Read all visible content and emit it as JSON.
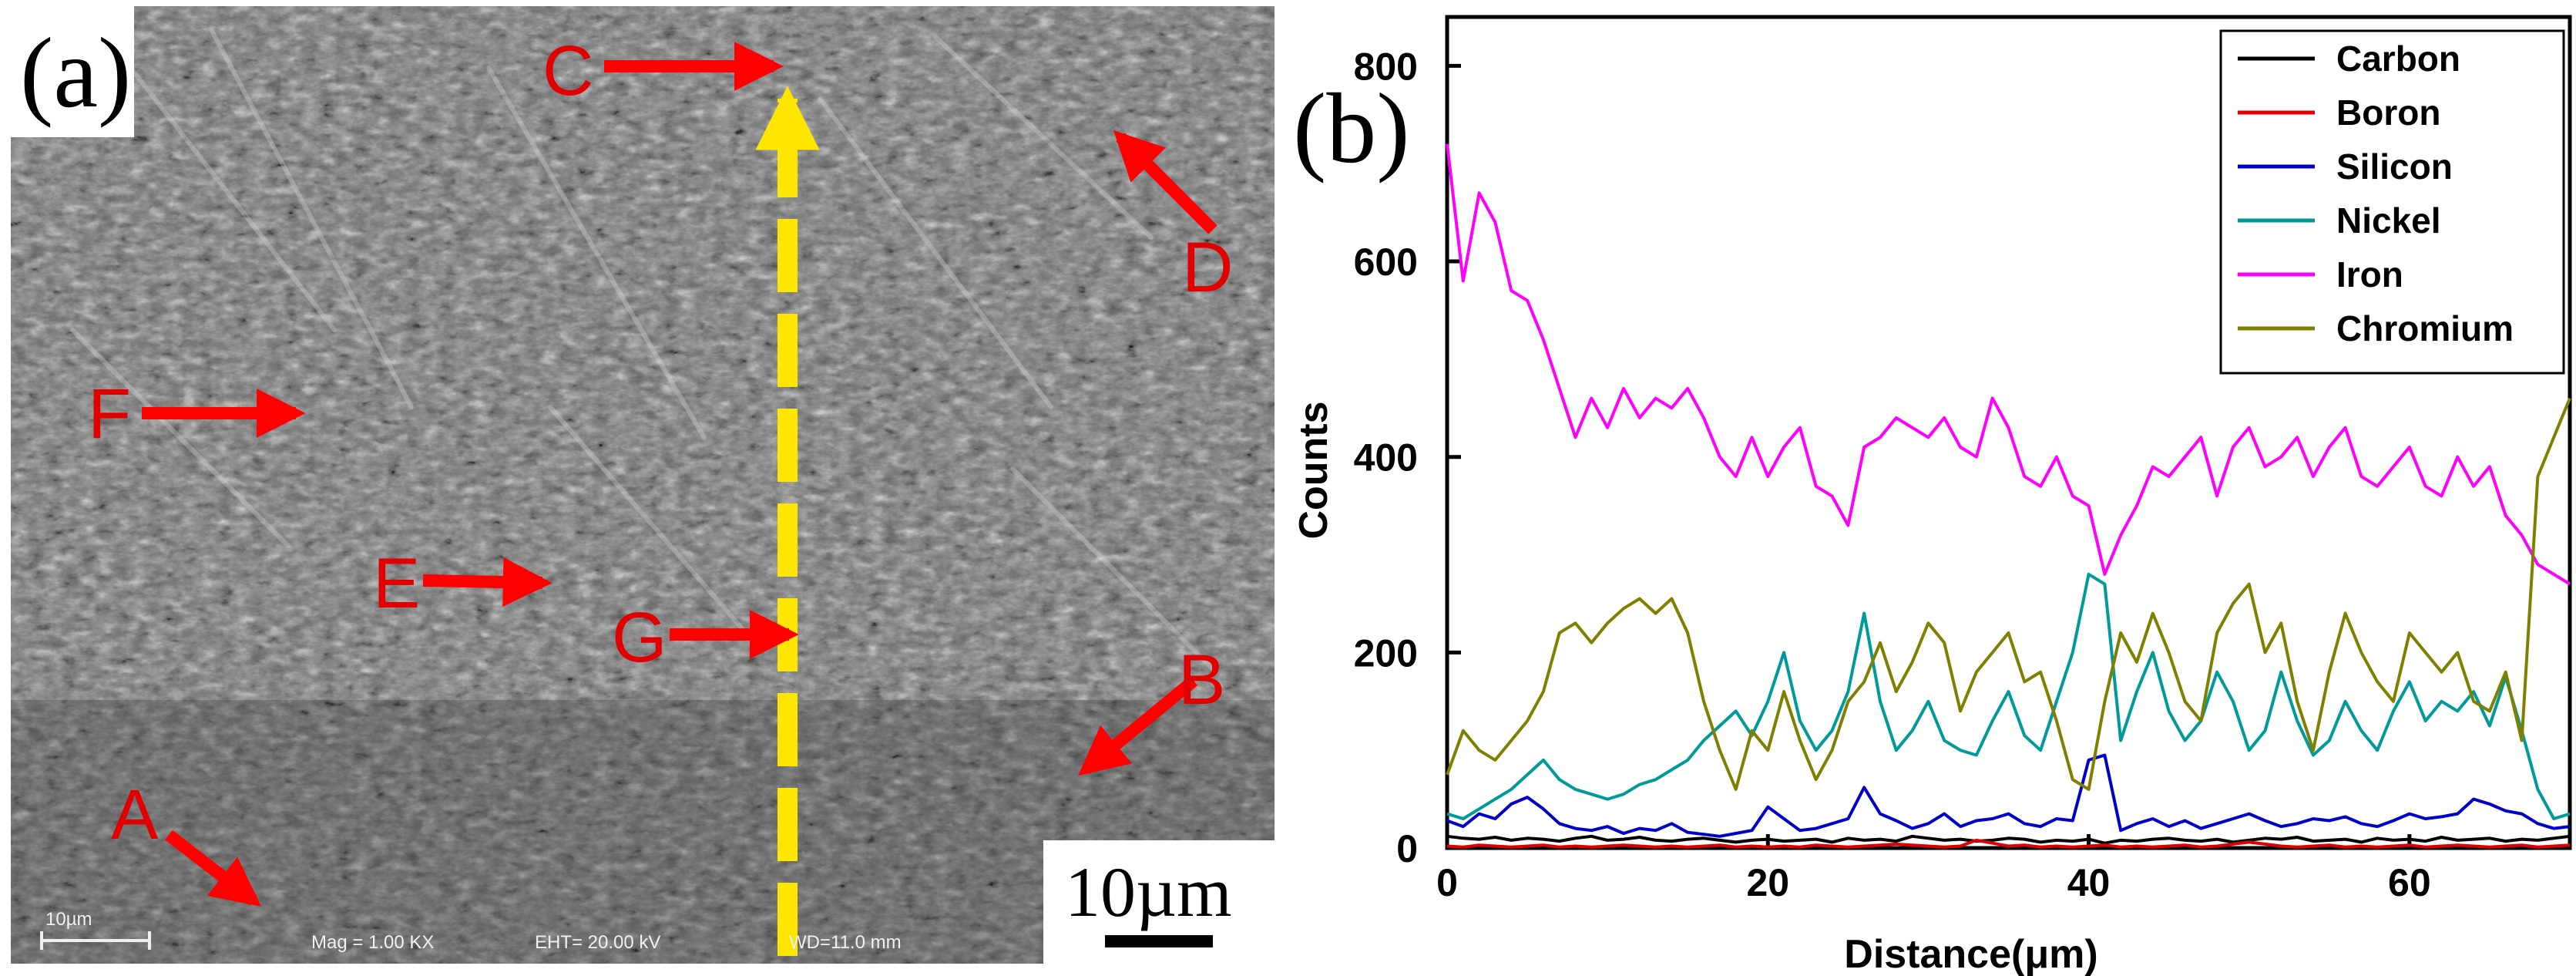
{
  "panel_a": {
    "label": "(a)",
    "markers": [
      {
        "label": "A"
      },
      {
        "label": "B"
      },
      {
        "label": "C"
      },
      {
        "label": "D"
      },
      {
        "label": "E"
      },
      {
        "label": "F"
      },
      {
        "label": "G"
      }
    ],
    "scale_bar_label": "10µm",
    "sem_info": {
      "scale": "10µm",
      "mag": "Mag =  1.00 KX",
      "eht": "EHT= 20.00 kV",
      "wd": "WD=11.0 mm"
    },
    "colors": {
      "arrow": "#ff0000",
      "scan_line": "#ffe600",
      "label": "#e00000"
    }
  },
  "chart_data": {
    "type": "line",
    "panel_label": "(b)",
    "title": "",
    "xlabel": "Distance(μm)",
    "ylabel": "Counts",
    "xlim": [
      0,
      70
    ],
    "ylim": [
      0,
      850
    ],
    "xticks": [
      0,
      20,
      40,
      60
    ],
    "yticks": [
      0,
      200,
      400,
      600,
      800
    ],
    "grid": false,
    "legend_position": "top-right",
    "x_step": 1,
    "series": [
      {
        "name": "Carbon",
        "color": "#000000",
        "values": [
          12,
          10,
          9,
          11,
          8,
          10,
          9,
          7,
          10,
          12,
          8,
          9,
          11,
          8,
          7,
          9,
          10,
          8,
          6,
          8,
          9,
          7,
          8,
          9,
          6,
          10,
          8,
          9,
          7,
          12,
          10,
          8,
          9,
          7,
          8,
          10,
          9,
          6,
          8,
          7,
          9,
          5,
          8,
          7,
          9,
          10,
          8,
          7,
          9,
          6,
          8,
          10,
          9,
          11,
          7,
          8,
          9,
          6,
          10,
          8,
          9,
          7,
          11,
          8,
          9,
          10,
          7,
          9,
          8,
          10,
          12
        ]
      },
      {
        "name": "Boron",
        "color": "#e00000",
        "values": [
          2,
          1,
          3,
          2,
          1,
          2,
          3,
          1,
          2,
          1,
          2,
          3,
          2,
          1,
          2,
          1,
          2,
          3,
          1,
          2,
          1,
          2,
          1,
          3,
          2,
          1,
          2,
          3,
          4,
          3,
          2,
          1,
          2,
          8,
          5,
          2,
          3,
          1,
          2,
          1,
          2,
          3,
          1,
          2,
          1,
          2,
          3,
          1,
          2,
          4,
          6,
          4,
          2,
          1,
          2,
          3,
          1,
          2,
          1,
          2,
          3,
          1,
          2,
          3,
          2,
          1,
          2,
          3,
          1,
          2,
          3
        ]
      },
      {
        "name": "Silicon",
        "color": "#0000c8",
        "values": [
          28,
          22,
          35,
          30,
          45,
          52,
          40,
          25,
          20,
          18,
          22,
          15,
          20,
          18,
          25,
          16,
          14,
          12,
          15,
          18,
          42,
          30,
          18,
          20,
          25,
          30,
          62,
          35,
          28,
          20,
          25,
          35,
          22,
          28,
          30,
          35,
          25,
          22,
          30,
          28,
          90,
          95,
          18,
          25,
          30,
          22,
          28,
          20,
          25,
          30,
          35,
          28,
          22,
          25,
          30,
          28,
          32,
          25,
          22,
          28,
          35,
          30,
          32,
          35,
          50,
          45,
          38,
          35,
          25,
          20,
          22
        ]
      },
      {
        "name": "Nickel",
        "color": "#009a9a",
        "values": [
          35,
          30,
          40,
          50,
          60,
          75,
          90,
          70,
          60,
          55,
          50,
          55,
          65,
          70,
          80,
          90,
          110,
          125,
          140,
          115,
          150,
          200,
          130,
          100,
          120,
          160,
          240,
          150,
          100,
          120,
          150,
          110,
          100,
          95,
          130,
          160,
          115,
          100,
          150,
          200,
          280,
          270,
          110,
          160,
          200,
          140,
          110,
          130,
          180,
          150,
          100,
          120,
          180,
          130,
          95,
          110,
          150,
          120,
          100,
          140,
          170,
          130,
          150,
          140,
          160,
          125,
          175,
          120,
          60,
          30,
          35
        ]
      },
      {
        "name": "Iron",
        "color": "#ff00ff",
        "values": [
          720,
          580,
          670,
          640,
          570,
          560,
          520,
          470,
          420,
          460,
          430,
          470,
          440,
          460,
          450,
          470,
          440,
          400,
          380,
          420,
          380,
          410,
          430,
          370,
          360,
          330,
          410,
          420,
          440,
          430,
          420,
          440,
          410,
          400,
          460,
          430,
          380,
          370,
          400,
          360,
          350,
          280,
          320,
          350,
          390,
          380,
          400,
          420,
          360,
          410,
          430,
          390,
          400,
          420,
          380,
          410,
          430,
          380,
          370,
          390,
          410,
          370,
          360,
          400,
          370,
          390,
          340,
          320,
          290,
          280,
          270
        ]
      },
      {
        "name": "Chromium",
        "color": "#808000",
        "values": [
          75,
          120,
          100,
          90,
          110,
          130,
          160,
          220,
          230,
          210,
          230,
          245,
          255,
          240,
          255,
          220,
          150,
          100,
          60,
          120,
          100,
          160,
          110,
          70,
          100,
          150,
          170,
          210,
          160,
          190,
          230,
          210,
          140,
          180,
          200,
          220,
          170,
          180,
          130,
          70,
          60,
          150,
          220,
          190,
          240,
          200,
          150,
          130,
          220,
          250,
          270,
          200,
          230,
          150,
          100,
          180,
          240,
          200,
          170,
          150,
          220,
          200,
          180,
          200,
          150,
          140,
          180,
          110,
          380,
          420,
          460
        ]
      }
    ]
  }
}
